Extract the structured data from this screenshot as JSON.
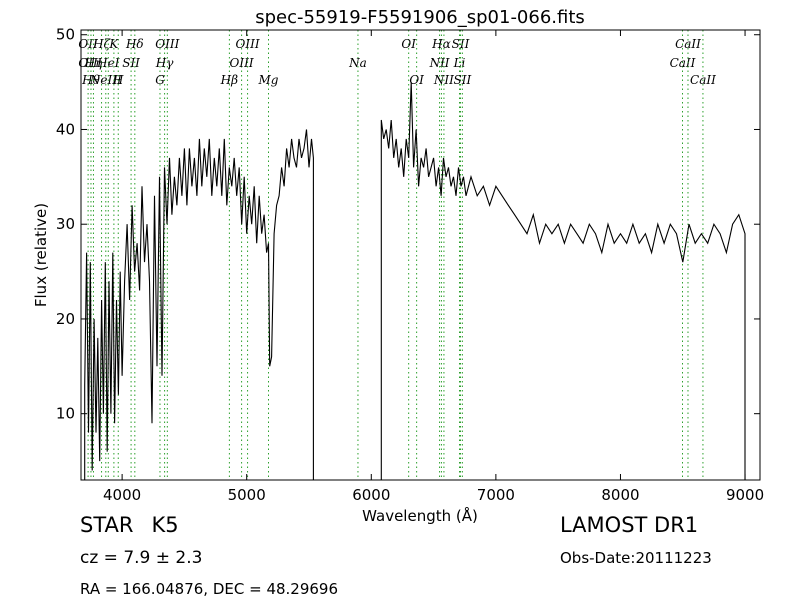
{
  "chart_data": {
    "type": "line",
    "title": "spec-55919-F5591906_sp01-066.fits",
    "xlabel": "Wavelength (Å)",
    "ylabel": "Flux (relative)",
    "xlim": [
      3670,
      9120
    ],
    "ylim": [
      3,
      50.5
    ],
    "xticks": [
      4000,
      5000,
      6000,
      7000,
      8000,
      9000
    ],
    "yticks": [
      10,
      20,
      30,
      40,
      50
    ],
    "grid": false,
    "legend": "none",
    "colors": {
      "spectrum": "#000000",
      "lines": "#2ca02c"
    },
    "series": [
      {
        "x": [
          3700,
          3715,
          3730,
          3745,
          3760,
          3775,
          3790,
          3805,
          3820,
          3835,
          3850,
          3865,
          3880,
          3895,
          3910,
          3925,
          3940,
          3955,
          3970,
          3985,
          4000,
          4020,
          4040,
          4060,
          4080,
          4100,
          4120,
          4140,
          4160,
          4180,
          4200,
          4220,
          4240,
          4260,
          4280,
          4300,
          4320,
          4340,
          4360,
          4380,
          4400,
          4420,
          4440,
          4460,
          4480,
          4500,
          4520,
          4540,
          4560,
          4580,
          4600,
          4620,
          4640,
          4660,
          4680,
          4700,
          4720,
          4740,
          4760,
          4780,
          4800,
          4820,
          4840,
          4860,
          4880,
          4900,
          4920,
          4940,
          4960,
          4980,
          5000,
          5020,
          5040,
          5060,
          5080,
          5100,
          5120,
          5140,
          5160,
          5175,
          5185,
          5200,
          5220,
          5240,
          5260,
          5280,
          5300,
          5320,
          5340,
          5360,
          5380,
          5400,
          5420,
          5440,
          5460,
          5480,
          5500,
          5520,
          5535
        ],
        "y": [
          13,
          27,
          8,
          26,
          4,
          20,
          8,
          18,
          5,
          22,
          10,
          26,
          6,
          24,
          10,
          27,
          9,
          22,
          12,
          25,
          14,
          24,
          30,
          22,
          32,
          25,
          28,
          23,
          34,
          26,
          30,
          24,
          9,
          33,
          15,
          35,
          14,
          36,
          30,
          37,
          31,
          35,
          32,
          37,
          33,
          38,
          32,
          38,
          34,
          37,
          33,
          39,
          34,
          38,
          35,
          39,
          33,
          37,
          34,
          38,
          33,
          39,
          32,
          36,
          34,
          37,
          33,
          36,
          30,
          35,
          29,
          33,
          30,
          34,
          28,
          33,
          29,
          31,
          27,
          28,
          15,
          16,
          29,
          32,
          33,
          36,
          34,
          38,
          36,
          39,
          37,
          36,
          39,
          37,
          38,
          40,
          36,
          39,
          37
        ]
      },
      {
        "x": [
          6080,
          6100,
          6120,
          6140,
          6160,
          6180,
          6200,
          6220,
          6240,
          6260,
          6280,
          6300,
          6320,
          6340,
          6360,
          6380,
          6400,
          6420,
          6440,
          6460,
          6480,
          6500,
          6520,
          6540,
          6560,
          6580,
          6600,
          6620,
          6640,
          6660,
          6680,
          6700,
          6720,
          6740,
          6760,
          6780,
          6800,
          6850,
          6900,
          6950,
          7000,
          7050,
          7100,
          7150,
          7200,
          7250,
          7300,
          7350,
          7400,
          7450,
          7500,
          7550,
          7600,
          7650,
          7700,
          7750,
          7800,
          7850,
          7900,
          7950,
          8000,
          8050,
          8100,
          8150,
          8200,
          8250,
          8300,
          8350,
          8400,
          8450,
          8500,
          8550,
          8600,
          8650,
          8700,
          8750,
          8800,
          8850,
          8900,
          8950,
          9000
        ],
        "y": [
          41,
          39,
          40,
          38,
          41,
          37,
          39,
          36,
          38,
          35,
          39,
          37,
          45,
          36,
          40,
          34,
          37,
          36,
          38,
          35,
          36,
          37,
          34,
          36,
          33,
          37,
          35,
          36,
          34,
          35,
          33,
          36,
          34,
          35,
          33,
          34,
          35,
          33,
          34,
          32,
          34,
          33,
          32,
          31,
          30,
          29,
          31,
          28,
          30,
          29,
          30,
          28,
          30,
          29,
          28,
          30,
          29,
          27,
          30,
          28,
          29,
          28,
          30,
          28,
          29,
          27,
          30,
          28,
          30,
          29,
          26,
          30,
          28,
          29,
          28,
          30,
          29,
          27,
          30,
          31,
          29
        ]
      }
    ],
    "lines": [
      {
        "x": 3727,
        "labels": [
          "OII",
          "OII"
        ]
      },
      {
        "x": 3750,
        "labels": [
          "Hθ"
        ]
      },
      {
        "x": 3770,
        "labels": [
          "Hη"
        ]
      },
      {
        "x": 3835,
        "labels": [
          "Hζ"
        ]
      },
      {
        "x": 3869,
        "labels": [
          "NeIII"
        ]
      },
      {
        "x": 3889,
        "labels": [
          "HeI"
        ]
      },
      {
        "x": 3934,
        "labels": [
          "K"
        ]
      },
      {
        "x": 3969,
        "labels": [
          "H"
        ]
      },
      {
        "x": 4072,
        "labels": [
          "SII"
        ]
      },
      {
        "x": 4102,
        "labels": [
          "Hδ"
        ]
      },
      {
        "x": 4304,
        "labels": [
          "G"
        ]
      },
      {
        "x": 4341,
        "labels": [
          "Hγ"
        ]
      },
      {
        "x": 4363,
        "labels": [
          "OIII"
        ]
      },
      {
        "x": 4861,
        "labels": [
          "Hβ"
        ]
      },
      {
        "x": 4959,
        "labels": [
          "OIII"
        ]
      },
      {
        "x": 5007,
        "labels": [
          "OIII"
        ]
      },
      {
        "x": 5175,
        "labels": [
          "Mg"
        ]
      },
      {
        "x": 5893,
        "labels": [
          "Na"
        ]
      },
      {
        "x": 6300,
        "labels": [
          "OI"
        ]
      },
      {
        "x": 6364,
        "labels": [
          "OI"
        ]
      },
      {
        "x": 6548,
        "labels": [
          "NII"
        ]
      },
      {
        "x": 6563,
        "labels": [
          "Hα"
        ]
      },
      {
        "x": 6583,
        "labels": [
          "NII"
        ]
      },
      {
        "x": 6708,
        "labels": [
          "Li"
        ]
      },
      {
        "x": 6716,
        "labels": [
          "SII"
        ]
      },
      {
        "x": 6731,
        "labels": [
          "SII"
        ]
      },
      {
        "x": 8498,
        "labels": [
          "CaII"
        ]
      },
      {
        "x": 8542,
        "labels": [
          "CaII"
        ]
      },
      {
        "x": 8662,
        "labels": [
          "CaII"
        ]
      }
    ]
  },
  "info": {
    "object_class": "STAR",
    "subclass": "K5",
    "survey": "LAMOST DR1",
    "redshift": "cz = 7.9 ± 2.3",
    "obs_date": "Obs-Date:20111223",
    "coordinates": "RA = 166.04876, DEC = 48.29696"
  }
}
